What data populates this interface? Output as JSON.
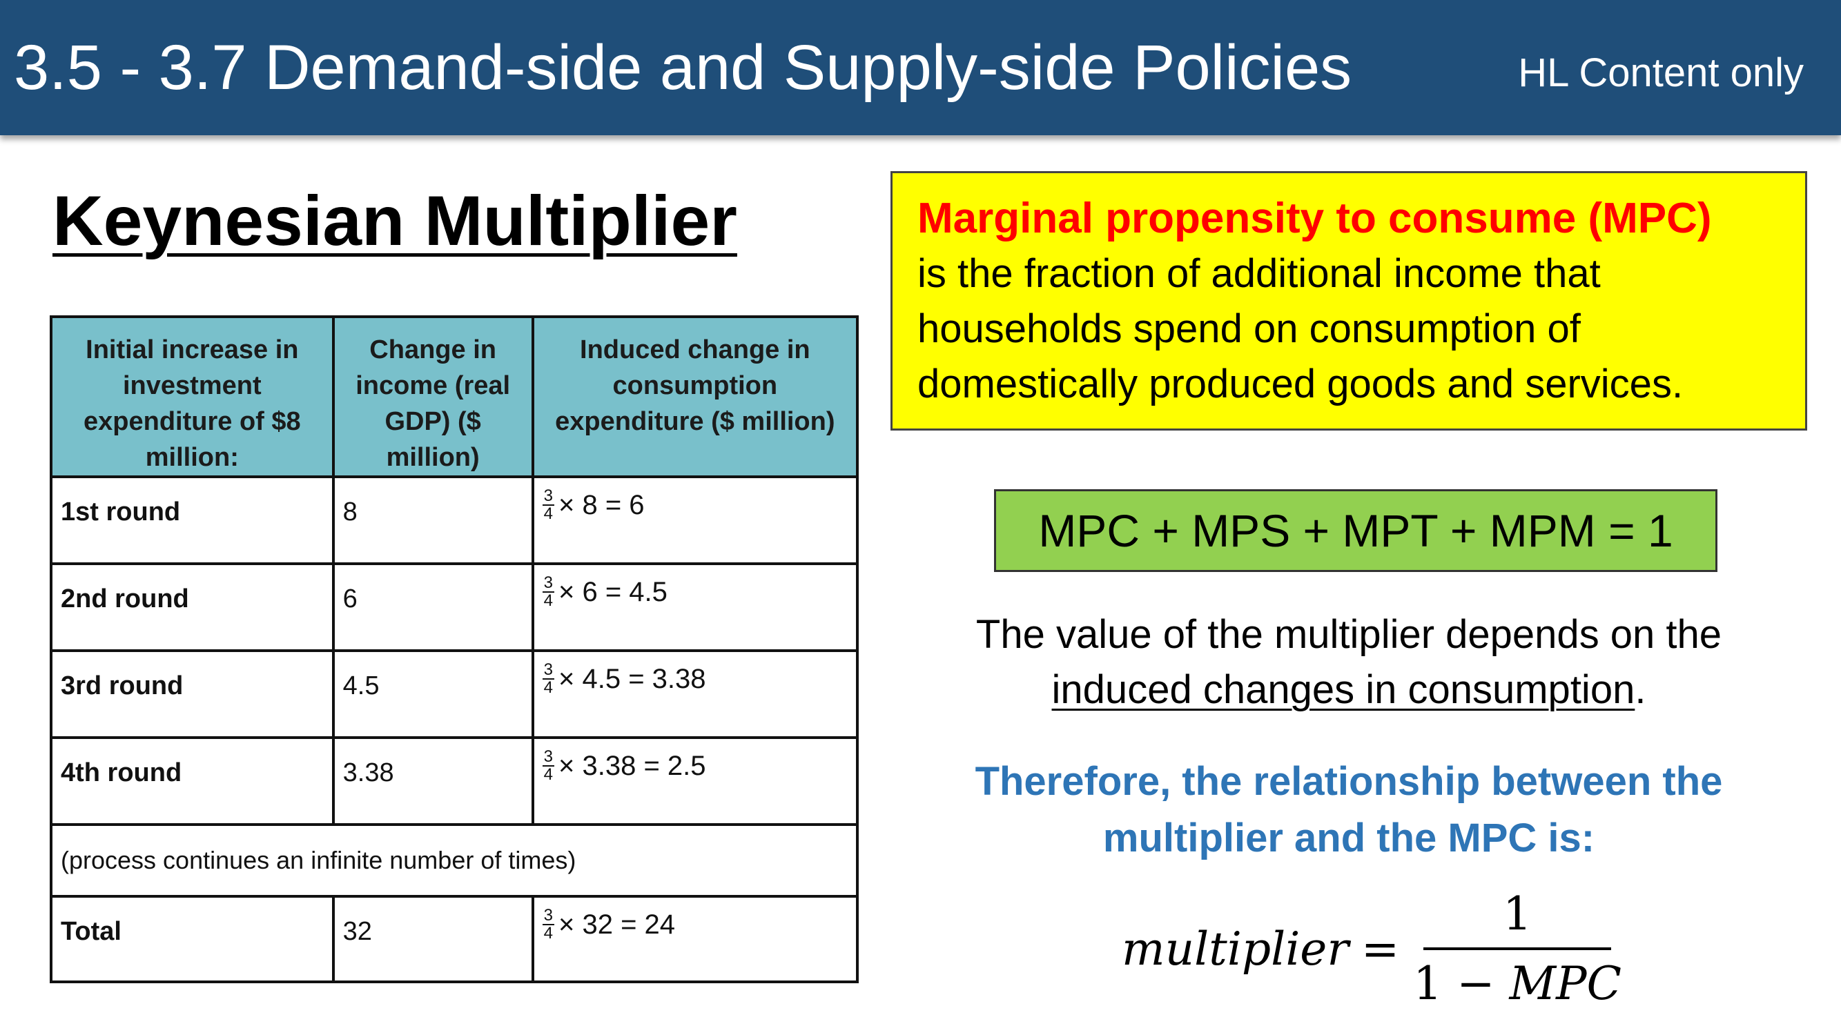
{
  "header": {
    "title": "3.5 - 3.7 Demand-side and Supply-side Policies",
    "subtitle": "HL Content only",
    "background_color": "#1f4e79"
  },
  "section_title": "Keynesian Multiplier",
  "table": {
    "headers": [
      "Initial increase in investment expenditure of $8 million:",
      "Change in income (real GDP) ($ million)",
      "Induced change in consumption expenditure ($ million)"
    ],
    "header_color": "#79c0cb",
    "rows": [
      {
        "round": "1st round",
        "income": "8",
        "frac_num": "3",
        "frac_den": "4",
        "calc": "× 8 = 6"
      },
      {
        "round": "2nd round",
        "income": "6",
        "frac_num": "3",
        "frac_den": "4",
        "calc": "× 6 = 4.5"
      },
      {
        "round": "3rd round",
        "income": "4.5",
        "frac_num": "3",
        "frac_den": "4",
        "calc": "× 4.5 = 3.38"
      },
      {
        "round": "4th round",
        "income": "3.38",
        "frac_num": "3",
        "frac_den": "4",
        "calc": "× 3.38 = 2.5"
      }
    ],
    "note": "(process continues an infinite number of times)",
    "total": {
      "round": "Total",
      "income": "32",
      "frac_num": "3",
      "frac_den": "4",
      "calc": "× 32 = 24"
    }
  },
  "definition": {
    "term": "Marginal propensity to consume (MPC)",
    "line1": "is the fraction of additional income that",
    "line2": "households spend on consumption of",
    "line3": "domestically produced goods and services.",
    "box_color": "#ffff00",
    "term_color": "#ff0000"
  },
  "formula_box": {
    "text": "MPC + MPS + MPT + MPM = 1",
    "color": "#92d050"
  },
  "value_text": {
    "line1": "The value of the multiplier depends on the",
    "line2_underlined": "induced changes in consumption",
    "line2_end": "."
  },
  "therefore": {
    "line1": "Therefore, the relationship between the",
    "line2": "multiplier and the MPC is:",
    "color": "#2e75b6"
  },
  "equation": {
    "lhs": "multiplier",
    "equals": "=",
    "numerator": "1",
    "denominator_num": "1",
    "minus": "−",
    "denominator_var": "MPC"
  }
}
